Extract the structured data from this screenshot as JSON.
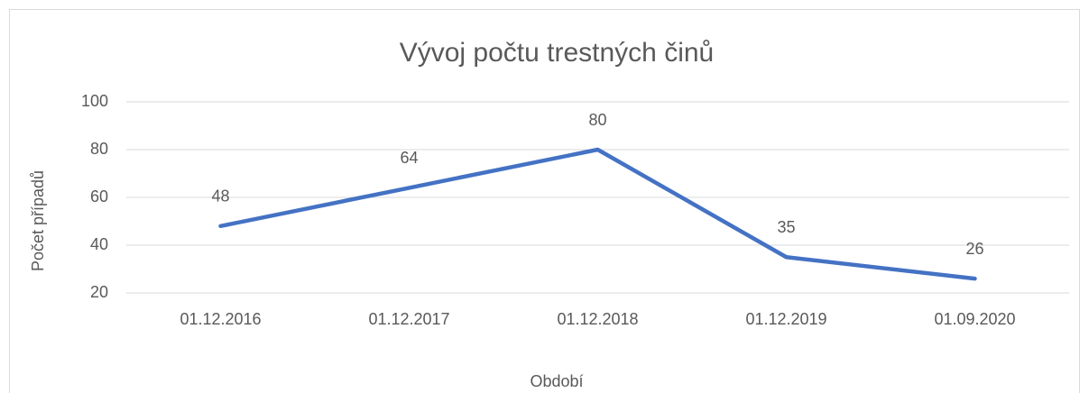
{
  "chart_data": {
    "type": "line",
    "title": "Vývoj počtu trestných činů",
    "x_label": "Období",
    "y_label": "Počet případů",
    "categories": [
      "01.12.2016",
      "01.12.2017",
      "01.12.2018",
      "01.12.2019",
      "01.09.2020"
    ],
    "values": [
      48,
      64,
      80,
      35,
      26
    ],
    "color": "#4472c4",
    "ylim": [
      20,
      100
    ],
    "yticks": [
      20,
      40,
      60,
      80,
      100
    ],
    "grid": true
  }
}
